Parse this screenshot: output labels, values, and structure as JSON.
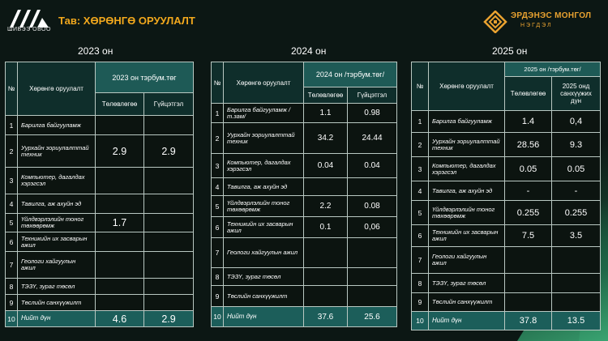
{
  "header": {
    "logo_left_text": "ШИВЭЭ ОВОО",
    "title": "Тав: ХӨРӨНГӨ ОРУУЛАЛТ",
    "brand_name": "ЭРДЭНЭС МОНГОЛ",
    "brand_sub": "НЭГДЭЛ"
  },
  "colors": {
    "title_orange": "#f2a81d",
    "header_teal": "#1e5a56",
    "total_teal": "#1c5e5a",
    "background": "#0c1714"
  },
  "tables": [
    {
      "year": "2023 он",
      "col_no": "№",
      "col_name": "Хөрөнгө оруулалт",
      "group_header": "2023 он тэрбум.төг",
      "sub_headers": [
        "Төлөвлөгөө",
        "Гүйцэтгэл"
      ],
      "rows": [
        {
          "n": "1",
          "name": "Барилга байгууламж",
          "plan": "",
          "actual": ""
        },
        {
          "n": "2",
          "name": "Уурхайн зориулалттай техник",
          "plan": "2.9",
          "actual": "2.9"
        },
        {
          "n": "3",
          "name": "Компьютер, дагалдах хэрэгсэл",
          "plan": "",
          "actual": ""
        },
        {
          "n": "4",
          "name": "Тавилга, аж ахуйн эд",
          "plan": "",
          "actual": ""
        },
        {
          "n": "5",
          "name": "Үйлдвэрлэлийн тоног төхөөрөмж",
          "plan": "1.7",
          "actual": ""
        },
        {
          "n": "6",
          "name": "Техникийн их засварын ажил",
          "plan": "",
          "actual": ""
        },
        {
          "n": "7",
          "name": "Геологи хайгуулын ажил",
          "plan": "",
          "actual": ""
        },
        {
          "n": "8",
          "name": "ТЭЗҮ, зураг төсөл",
          "plan": "",
          "actual": ""
        },
        {
          "n": "9",
          "name": "Төслийн санхүүжилт",
          "plan": "",
          "actual": ""
        }
      ],
      "total": {
        "n": "10",
        "name": "Нийт дүн",
        "plan": "4.6",
        "actual": "2.9"
      }
    },
    {
      "year": "2024 он",
      "col_no": "№",
      "col_name": "Хөрөнгө оруулалт",
      "group_header": "2024 он /тэрбум.төг/",
      "sub_headers": [
        "Төлөвлөгөө",
        "Гүйцэтгэл"
      ],
      "rows": [
        {
          "n": "1",
          "name": "Барилга байгууламж /т.зам/",
          "plan": "1.1",
          "actual": "0.98"
        },
        {
          "n": "2",
          "name": "Уурхайн зориулалттай техник",
          "plan": "34.2",
          "actual": "24.44"
        },
        {
          "n": "3",
          "name": "Компьютер, дагалдах хэрэгсэл",
          "plan": "0.04",
          "actual": "0.04"
        },
        {
          "n": "4",
          "name": "Тавилга, аж ахуйн эд",
          "plan": "",
          "actual": ""
        },
        {
          "n": "5",
          "name": "Үйлдвэрлэлийн тоног төхөөрөмж",
          "plan": "2.2",
          "actual": "0.08"
        },
        {
          "n": "6",
          "name": "Техникийн их засварын ажил",
          "plan": "0.1",
          "actual": "0,06"
        },
        {
          "n": "7",
          "name": "Геологи хайгуулын ажил",
          "plan": "",
          "actual": ""
        },
        {
          "n": "8",
          "name": "ТЭЗҮ, зураг төсөл",
          "plan": "",
          "actual": ""
        },
        {
          "n": "9",
          "name": "Төслийн санхүүжилт",
          "plan": "",
          "actual": ""
        }
      ],
      "total": {
        "n": "10",
        "name": "Нийт дүн",
        "plan": "37.6",
        "actual": "25.6"
      }
    },
    {
      "year": "2025 он",
      "col_no": "№",
      "col_name": "Хөрөнгө оруулалт",
      "group_header": "2025 он /тэрбум.төг/",
      "sub_headers": [
        "Төлөвлөгөө",
        "2025 онд санхүүжих дүн"
      ],
      "rows": [
        {
          "n": "1",
          "name": "Барилга байгууламж",
          "plan": "1.4",
          "actual": "0,4"
        },
        {
          "n": "2",
          "name": "Уурхайн зориулалттай техник",
          "plan": "28.56",
          "actual": "9.3"
        },
        {
          "n": "3",
          "name": "Компьютер, дагалдах хэрэгсэл",
          "plan": "0.05",
          "actual": "0.05"
        },
        {
          "n": "4",
          "name": "Тавилга, аж ахуйн эд",
          "plan": "-",
          "actual": "-"
        },
        {
          "n": "5",
          "name": "Үйлдвэрлэлийн тоног төхөөрөмж",
          "plan": "0.255",
          "actual": "0.255"
        },
        {
          "n": "6",
          "name": "Техникийн их засварын ажил",
          "plan": "7.5",
          "actual": "3.5"
        },
        {
          "n": "7",
          "name": "Геологи хайгуулын ажил",
          "plan": "",
          "actual": ""
        },
        {
          "n": "8",
          "name": "ТЭЗҮ, зураг төсөл",
          "plan": "",
          "actual": ""
        },
        {
          "n": "9",
          "name": "Төслийн санхүүжилт",
          "plan": "",
          "actual": ""
        }
      ],
      "total": {
        "n": "10",
        "name": "Нийт дүн",
        "plan": "37.8",
        "actual": "13.5"
      }
    }
  ]
}
